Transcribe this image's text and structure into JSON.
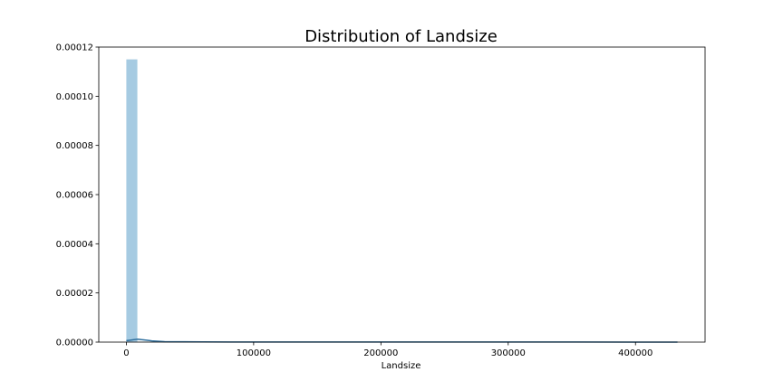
{
  "chart_data": {
    "type": "bar",
    "title": "Distribution of Landsize",
    "xlabel": "Landsize",
    "ylabel": "",
    "xlim": [
      -21650,
      454650
    ],
    "ylim": [
      0,
      0.00012
    ],
    "x_ticks": [
      0,
      100000,
      200000,
      300000,
      400000
    ],
    "x_tick_labels": [
      "0",
      "100000",
      "200000",
      "300000",
      "400000"
    ],
    "y_ticks": [
      0,
      2e-05,
      4e-05,
      6e-05,
      8e-05,
      0.0001,
      0.00012
    ],
    "y_tick_labels": [
      "0.00000",
      "0.00002",
      "0.00004",
      "0.00006",
      "0.00008",
      "0.00010",
      "0.00012"
    ],
    "grid": false,
    "histogram": {
      "bin_start": 0,
      "bin_width": 8660,
      "densities": [
        0.000115,
        2e-07,
        8e-08,
        5e-08,
        3e-08,
        2e-08,
        2e-08,
        1e-08,
        1e-08,
        1e-08,
        1e-08,
        1e-08,
        1e-08,
        1e-08,
        1e-08,
        1e-08,
        1e-08,
        1e-08,
        1e-08,
        1e-08,
        1e-08,
        1e-08,
        1e-08,
        1e-08,
        1e-08,
        1e-08,
        1e-08,
        1e-08,
        1e-08,
        1e-08,
        1e-08,
        1e-08,
        1e-08,
        1e-08,
        1e-08,
        1e-08,
        1e-08,
        1e-08,
        1e-08,
        1e-08,
        1e-08,
        1e-08,
        1e-08,
        1e-08,
        1e-08,
        1e-08,
        1e-08,
        1e-08,
        1e-08,
        1e-08
      ]
    },
    "kde": {
      "x": [
        0,
        3000,
        6000,
        9000,
        12000,
        16000,
        20000,
        30000,
        60000,
        100000,
        200000,
        300000,
        400000,
        433000
      ],
      "y": [
        6e-07,
        8e-07,
        1e-06,
        1.2e-06,
        1e-06,
        8e-07,
        5e-07,
        2e-07,
        8e-08,
        5e-08,
        3e-08,
        3e-08,
        2e-08,
        1e-08
      ]
    },
    "colors": {
      "bars": "#a6cbe2",
      "kde_line": "#2e6f9e",
      "axes": "#000000"
    }
  }
}
